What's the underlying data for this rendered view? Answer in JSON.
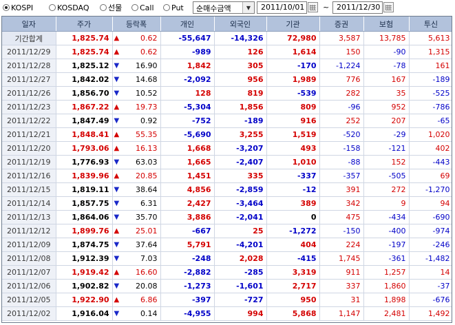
{
  "toolbar": {
    "markets": [
      {
        "label": "KOSPI",
        "selected": true
      },
      {
        "label": "KOSDAQ",
        "selected": false
      },
      {
        "label": "선물",
        "selected": false
      },
      {
        "label": "Call",
        "selected": false
      },
      {
        "label": "Put",
        "selected": false
      }
    ],
    "metric_select": "순매수금액",
    "start_date": "2011/10/01",
    "range_separator": "~",
    "end_date": "2011/12/30"
  },
  "table": {
    "columns": [
      "일자",
      "주가",
      "등락폭",
      "개인",
      "외국인",
      "기관",
      "증권",
      "보험",
      "투신"
    ],
    "rows": [
      {
        "date": "기간합계",
        "price": "1,825.74",
        "dir": "up",
        "chg": "0.62",
        "indiv": "-55,647",
        "foreign": "-14,326",
        "inst": "72,980",
        "sec": "3,587",
        "ins": "13,785",
        "trust": "5,613"
      },
      {
        "date": "2011/12/29",
        "price": "1,825.74",
        "dir": "up",
        "chg": "0.62",
        "indiv": "-989",
        "foreign": "126",
        "inst": "1,614",
        "sec": "150",
        "ins": "-90",
        "trust": "1,315"
      },
      {
        "date": "2011/12/28",
        "price": "1,825.12",
        "dir": "down",
        "chg": "16.90",
        "indiv": "1,842",
        "foreign": "305",
        "inst": "-170",
        "sec": "-1,224",
        "ins": "-78",
        "trust": "161"
      },
      {
        "date": "2011/12/27",
        "price": "1,842.02",
        "dir": "down",
        "chg": "14.68",
        "indiv": "-2,092",
        "foreign": "956",
        "inst": "1,989",
        "sec": "776",
        "ins": "167",
        "trust": "-189"
      },
      {
        "date": "2011/12/26",
        "price": "1,856.70",
        "dir": "down",
        "chg": "10.52",
        "indiv": "128",
        "foreign": "819",
        "inst": "-539",
        "sec": "282",
        "ins": "35",
        "trust": "-525"
      },
      {
        "date": "2011/12/23",
        "price": "1,867.22",
        "dir": "up",
        "chg": "19.73",
        "indiv": "-5,304",
        "foreign": "1,856",
        "inst": "809",
        "sec": "-96",
        "ins": "952",
        "trust": "-786"
      },
      {
        "date": "2011/12/22",
        "price": "1,847.49",
        "dir": "down",
        "chg": "0.92",
        "indiv": "-752",
        "foreign": "-189",
        "inst": "916",
        "sec": "252",
        "ins": "207",
        "trust": "-65"
      },
      {
        "date": "2011/12/21",
        "price": "1,848.41",
        "dir": "up",
        "chg": "55.35",
        "indiv": "-5,690",
        "foreign": "3,255",
        "inst": "1,519",
        "sec": "-520",
        "ins": "-29",
        "trust": "1,020"
      },
      {
        "date": "2011/12/20",
        "price": "1,793.06",
        "dir": "up",
        "chg": "16.13",
        "indiv": "1,668",
        "foreign": "-3,207",
        "inst": "493",
        "sec": "-158",
        "ins": "-121",
        "trust": "402"
      },
      {
        "date": "2011/12/19",
        "price": "1,776.93",
        "dir": "down",
        "chg": "63.03",
        "indiv": "1,665",
        "foreign": "-2,407",
        "inst": "1,010",
        "sec": "-88",
        "ins": "152",
        "trust": "-443"
      },
      {
        "date": "2011/12/16",
        "price": "1,839.96",
        "dir": "up",
        "chg": "20.85",
        "indiv": "1,451",
        "foreign": "335",
        "inst": "-337",
        "sec": "-357",
        "ins": "-505",
        "trust": "69"
      },
      {
        "date": "2011/12/15",
        "price": "1,819.11",
        "dir": "down",
        "chg": "38.64",
        "indiv": "4,856",
        "foreign": "-2,859",
        "inst": "-12",
        "sec": "391",
        "ins": "272",
        "trust": "-1,270"
      },
      {
        "date": "2011/12/14",
        "price": "1,857.75",
        "dir": "down",
        "chg": "6.31",
        "indiv": "2,427",
        "foreign": "-3,464",
        "inst": "389",
        "sec": "342",
        "ins": "9",
        "trust": "94"
      },
      {
        "date": "2011/12/13",
        "price": "1,864.06",
        "dir": "down",
        "chg": "35.70",
        "indiv": "3,886",
        "foreign": "-2,041",
        "inst": "0",
        "sec": "475",
        "ins": "-434",
        "trust": "-690"
      },
      {
        "date": "2011/12/12",
        "price": "1,899.76",
        "dir": "up",
        "chg": "25.01",
        "indiv": "-667",
        "foreign": "25",
        "inst": "-1,272",
        "sec": "-150",
        "ins": "-400",
        "trust": "-974"
      },
      {
        "date": "2011/12/09",
        "price": "1,874.75",
        "dir": "down",
        "chg": "37.64",
        "indiv": "5,791",
        "foreign": "-4,201",
        "inst": "404",
        "sec": "224",
        "ins": "-197",
        "trust": "-246"
      },
      {
        "date": "2011/12/08",
        "price": "1,912.39",
        "dir": "down",
        "chg": "7.03",
        "indiv": "-248",
        "foreign": "2,028",
        "inst": "-415",
        "sec": "1,745",
        "ins": "-361",
        "trust": "-1,482"
      },
      {
        "date": "2011/12/07",
        "price": "1,919.42",
        "dir": "up",
        "chg": "16.60",
        "indiv": "-2,882",
        "foreign": "-285",
        "inst": "3,319",
        "sec": "911",
        "ins": "1,257",
        "trust": "14"
      },
      {
        "date": "2011/12/06",
        "price": "1,902.82",
        "dir": "down",
        "chg": "20.08",
        "indiv": "-1,273",
        "foreign": "-1,601",
        "inst": "2,717",
        "sec": "337",
        "ins": "1,860",
        "trust": "-37"
      },
      {
        "date": "2011/12/05",
        "price": "1,922.90",
        "dir": "up",
        "chg": "6.86",
        "indiv": "-397",
        "foreign": "-727",
        "inst": "950",
        "sec": "31",
        "ins": "1,898",
        "trust": "-676"
      },
      {
        "date": "2011/12/02",
        "price": "1,916.04",
        "dir": "down",
        "chg": "0.14",
        "indiv": "-4,955",
        "foreign": "994",
        "inst": "5,868",
        "sec": "1,147",
        "ins": "2,481",
        "trust": "1,492"
      }
    ]
  },
  "colors": {
    "up": "#d40000",
    "down": "#0000c8",
    "header_bg": "#b2c2dc",
    "date_bg": "#eef1f7"
  },
  "icons": {
    "up_arrow": "up-triangle-icon",
    "down_arrow": "down-triangle-icon",
    "calendar": "calendar-icon",
    "dropdown": "chevron-down-icon"
  }
}
